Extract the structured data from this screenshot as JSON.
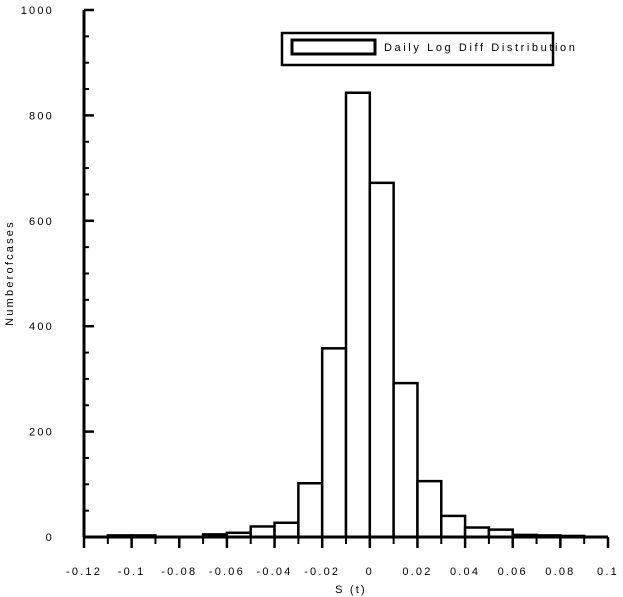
{
  "chart_data": {
    "type": "bar",
    "title": "",
    "xlabel": "S (t)",
    "ylabel": "Numberofcases",
    "xlim": [
      -0.12,
      0.1
    ],
    "ylim": [
      0,
      1000
    ],
    "grid": false,
    "legend_position": "top-right",
    "series": [
      {
        "name": "Daily Log Diff Distribution",
        "bins": [
          {
            "x0": -0.11,
            "x1": -0.1,
            "value": 3
          },
          {
            "x0": -0.1,
            "x1": -0.09,
            "value": 3
          },
          {
            "x0": -0.09,
            "x1": -0.08,
            "value": 0
          },
          {
            "x0": -0.08,
            "x1": -0.07,
            "value": 0
          },
          {
            "x0": -0.07,
            "x1": -0.06,
            "value": 5
          },
          {
            "x0": -0.06,
            "x1": -0.05,
            "value": 8
          },
          {
            "x0": -0.05,
            "x1": -0.04,
            "value": 20
          },
          {
            "x0": -0.04,
            "x1": -0.03,
            "value": 27
          },
          {
            "x0": -0.03,
            "x1": -0.02,
            "value": 102
          },
          {
            "x0": -0.02,
            "x1": -0.01,
            "value": 358
          },
          {
            "x0": -0.01,
            "x1": 0.0,
            "value": 843
          },
          {
            "x0": 0.0,
            "x1": 0.01,
            "value": 672
          },
          {
            "x0": 0.01,
            "x1": 0.02,
            "value": 292
          },
          {
            "x0": 0.02,
            "x1": 0.03,
            "value": 106
          },
          {
            "x0": 0.03,
            "x1": 0.04,
            "value": 40
          },
          {
            "x0": 0.04,
            "x1": 0.05,
            "value": 18
          },
          {
            "x0": 0.05,
            "x1": 0.06,
            "value": 14
          },
          {
            "x0": 0.06,
            "x1": 0.07,
            "value": 4
          },
          {
            "x0": 0.07,
            "x1": 0.08,
            "value": 3
          },
          {
            "x0": 0.08,
            "x1": 0.09,
            "value": 2
          }
        ]
      }
    ],
    "x_ticks": [
      {
        "value": -0.12,
        "label": "-0.12"
      },
      {
        "value": -0.1,
        "label": "-0.1"
      },
      {
        "value": -0.08,
        "label": "-0.08"
      },
      {
        "value": -0.06,
        "label": "-0.06"
      },
      {
        "value": -0.04,
        "label": "-0.04"
      },
      {
        "value": -0.02,
        "label": "-0.02"
      },
      {
        "value": 0.0,
        "label": "0"
      },
      {
        "value": 0.02,
        "label": "0.02"
      },
      {
        "value": 0.04,
        "label": "0.04"
      },
      {
        "value": 0.06,
        "label": "0.06"
      },
      {
        "value": 0.08,
        "label": "0.08"
      },
      {
        "value": 0.1,
        "label": "0.1"
      }
    ],
    "x_minor_step": 0.01,
    "y_ticks": [
      {
        "value": 0,
        "label": "0"
      },
      {
        "value": 200,
        "label": "200"
      },
      {
        "value": 400,
        "label": "400"
      },
      {
        "value": 600,
        "label": "600"
      },
      {
        "value": 800,
        "label": "800"
      },
      {
        "value": 1000,
        "label": "1000"
      }
    ],
    "y_minor_step": 50,
    "colors": {
      "bar_fill": "#ffffff",
      "stroke": "#000000"
    }
  }
}
